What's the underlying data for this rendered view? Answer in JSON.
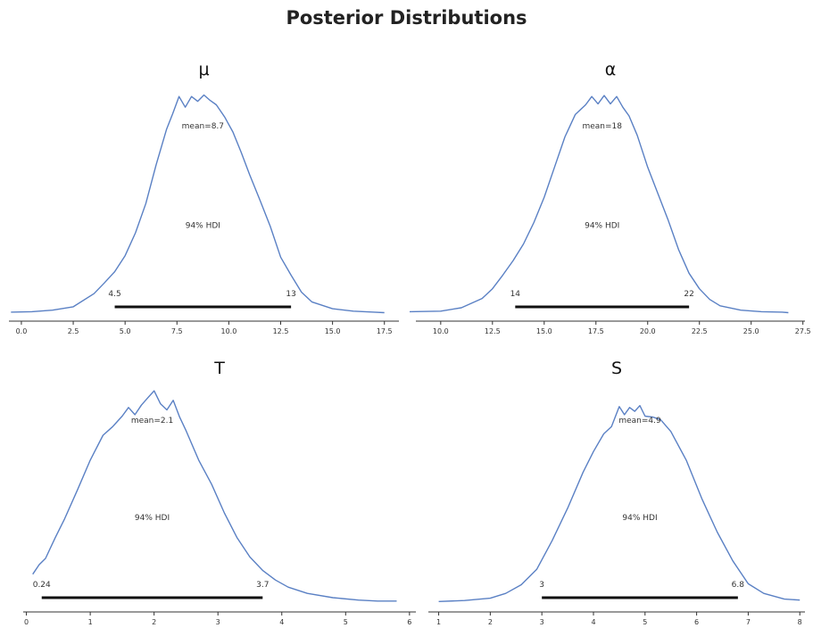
{
  "figure": {
    "title": "Posterior Distributions"
  },
  "chart_data": [
    {
      "type": "area",
      "title": "μ",
      "xticks": [
        0.0,
        2.5,
        5.0,
        7.5,
        10.0,
        12.5,
        15.0,
        17.5
      ],
      "xlim": [
        -0.6,
        18.2
      ],
      "tick_decimals": 1,
      "mean_label": "mean=8.7",
      "hdi_label": "94% HDI",
      "hdi_low": 4.5,
      "hdi_high": 13,
      "hdi_low_label": "4.5",
      "hdi_high_label": "13",
      "density": {
        "x": [
          -0.5,
          0.5,
          1.5,
          2.5,
          3.5,
          4.0,
          4.5,
          5.0,
          5.5,
          6.0,
          6.5,
          7.0,
          7.3,
          7.6,
          7.9,
          8.2,
          8.5,
          8.8,
          9.1,
          9.4,
          9.8,
          10.2,
          10.6,
          11.0,
          11.5,
          12.0,
          12.5,
          13.0,
          13.5,
          14.0,
          15.0,
          16.0,
          17.0,
          17.5
        ],
        "y": [
          0.002,
          0.003,
          0.006,
          0.013,
          0.04,
          0.062,
          0.085,
          0.118,
          0.165,
          0.225,
          0.305,
          0.378,
          0.41,
          0.445,
          0.423,
          0.445,
          0.435,
          0.448,
          0.437,
          0.428,
          0.403,
          0.372,
          0.33,
          0.285,
          0.232,
          0.178,
          0.115,
          0.078,
          0.043,
          0.023,
          0.009,
          0.004,
          0.002,
          0.001
        ]
      }
    },
    {
      "type": "area",
      "title": "α",
      "xticks": [
        10.0,
        12.5,
        15.0,
        17.5,
        20.0,
        22.5,
        25.0,
        27.5
      ],
      "xlim": [
        8.8,
        27.6
      ],
      "tick_decimals": 1,
      "mean_label": "mean=18",
      "hdi_label": "94% HDI",
      "hdi_low": 13.6,
      "hdi_high": 22,
      "hdi_low_label": "14",
      "hdi_high_label": "22",
      "density": {
        "x": [
          8.5,
          10.0,
          11.0,
          12.0,
          12.5,
          13.0,
          13.5,
          14.0,
          14.5,
          15.0,
          15.5,
          16.0,
          16.5,
          17.0,
          17.3,
          17.6,
          17.9,
          18.2,
          18.5,
          18.8,
          19.1,
          19.5,
          20.0,
          20.5,
          21.0,
          21.5,
          22.0,
          22.5,
          23.0,
          23.5,
          24.5,
          25.5,
          26.5,
          26.8
        ],
        "y": [
          0.003,
          0.004,
          0.011,
          0.03,
          0.05,
          0.078,
          0.108,
          0.142,
          0.186,
          0.238,
          0.3,
          0.362,
          0.408,
          0.428,
          0.445,
          0.43,
          0.447,
          0.43,
          0.445,
          0.423,
          0.405,
          0.365,
          0.3,
          0.245,
          0.19,
          0.13,
          0.082,
          0.05,
          0.028,
          0.015,
          0.006,
          0.003,
          0.002,
          0.001
        ]
      }
    },
    {
      "type": "area",
      "title": "T",
      "xticks": [
        0,
        1,
        2,
        3,
        4,
        5,
        6
      ],
      "xlim": [
        -0.05,
        6.1
      ],
      "tick_decimals": 0,
      "mean_label": "mean=2.1",
      "hdi_label": "94% HDI",
      "hdi_low": 0.24,
      "hdi_high": 3.7,
      "hdi_low_label": "0.24",
      "hdi_high_label": "3.7",
      "density": {
        "x": [
          0.1,
          0.2,
          0.3,
          0.45,
          0.6,
          0.8,
          1.0,
          1.2,
          1.35,
          1.5,
          1.6,
          1.7,
          1.8,
          1.9,
          2.0,
          2.1,
          2.2,
          2.3,
          2.4,
          2.5,
          2.7,
          2.9,
          3.1,
          3.3,
          3.5,
          3.7,
          3.9,
          4.1,
          4.4,
          4.8,
          5.2,
          5.5,
          5.8
        ],
        "y": [
          0.062,
          0.082,
          0.095,
          0.138,
          0.178,
          0.238,
          0.3,
          0.352,
          0.37,
          0.392,
          0.41,
          0.395,
          0.415,
          0.43,
          0.445,
          0.418,
          0.405,
          0.425,
          0.39,
          0.362,
          0.3,
          0.25,
          0.19,
          0.138,
          0.098,
          0.07,
          0.05,
          0.035,
          0.022,
          0.013,
          0.008,
          0.006,
          0.006
        ]
      }
    },
    {
      "type": "area",
      "title": "S",
      "xticks": [
        1,
        2,
        3,
        4,
        5,
        6,
        7,
        8
      ],
      "xlim": [
        0.8,
        8.1
      ],
      "tick_decimals": 0,
      "mean_label": "mean=4.9",
      "hdi_label": "94% HDI",
      "hdi_low": 3.0,
      "hdi_high": 6.8,
      "hdi_low_label": "3",
      "hdi_high_label": "6.8",
      "density": {
        "x": [
          1.0,
          1.5,
          2.0,
          2.3,
          2.6,
          2.9,
          3.2,
          3.5,
          3.8,
          4.0,
          4.2,
          4.35,
          4.5,
          4.6,
          4.7,
          4.8,
          4.9,
          5.0,
          5.15,
          5.3,
          5.5,
          5.8,
          6.1,
          6.4,
          6.7,
          7.0,
          7.3,
          7.7,
          8.0
        ],
        "y": [
          0.005,
          0.007,
          0.012,
          0.022,
          0.04,
          0.072,
          0.132,
          0.2,
          0.275,
          0.318,
          0.355,
          0.37,
          0.412,
          0.395,
          0.41,
          0.402,
          0.414,
          0.392,
          0.39,
          0.385,
          0.36,
          0.3,
          0.22,
          0.15,
          0.09,
          0.042,
          0.022,
          0.01,
          0.008
        ]
      }
    }
  ]
}
